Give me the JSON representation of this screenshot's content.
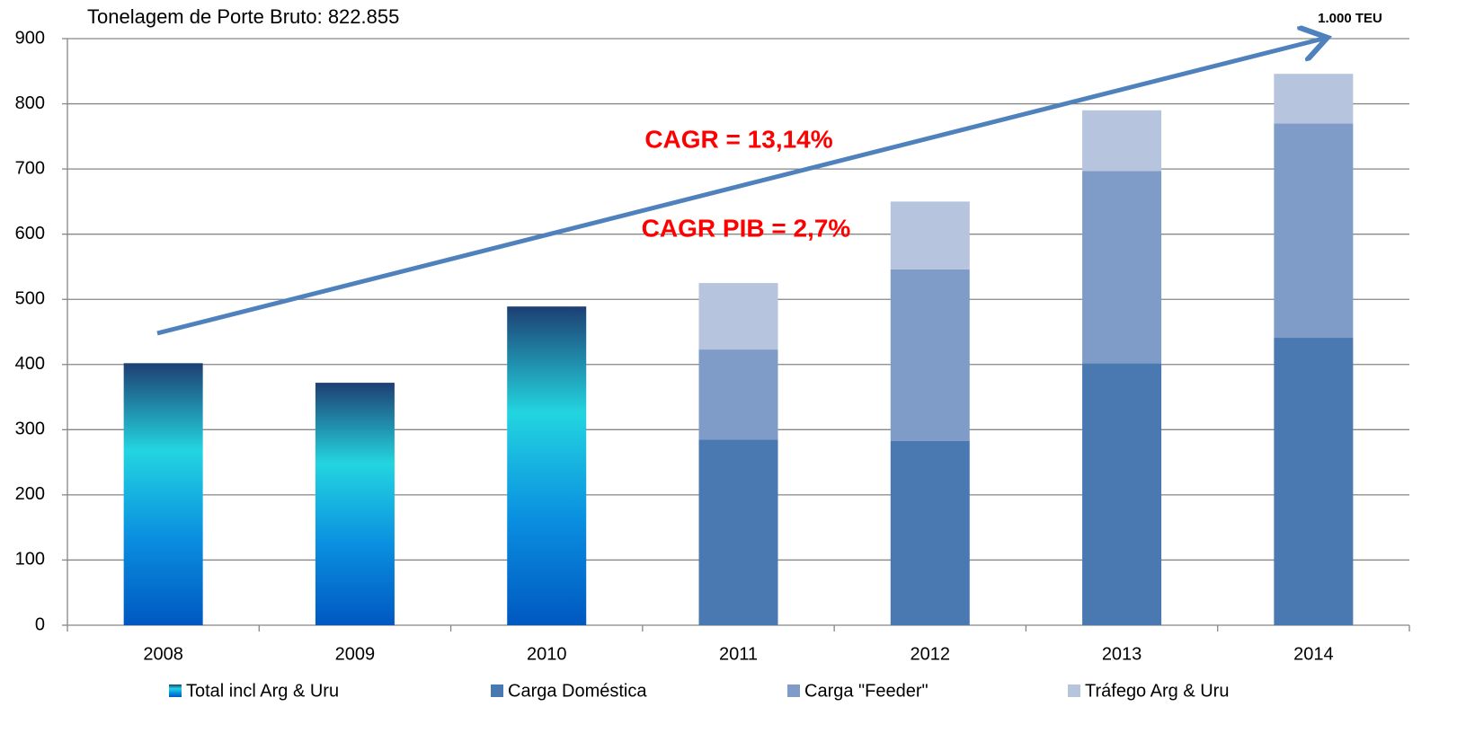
{
  "chart_data": {
    "type": "stacked-bar",
    "title": "Tonelagem de Porte Bruto: 822.855",
    "annotations": [
      "1.000 TEU",
      "CAGR  = 13,14%",
      "CAGR PIB = 2,7%"
    ],
    "categories": [
      "2008",
      "2009",
      "2010",
      "2011",
      "2012",
      "2013",
      "2014"
    ],
    "series": [
      {
        "name": "Total incl Arg & Uru",
        "color": "#1fb5e0",
        "gradient": [
          "#1d3f73",
          "#23d5e0",
          "#0a8fe0",
          "#0058c0"
        ],
        "values": [
          402,
          372,
          489,
          null,
          null,
          null,
          null
        ]
      },
      {
        "name": "Carga Doméstica",
        "color": "#4a78b0",
        "values": [
          null,
          null,
          null,
          285,
          283,
          402,
          441
        ]
      },
      {
        "name": "Carga \"Feeder\"",
        "color": "#7f9cc8",
        "values": [
          null,
          null,
          null,
          138,
          263,
          295,
          329
        ]
      },
      {
        "name": "Tráfego Arg & Uru",
        "color": "#b7c4de",
        "values": [
          null,
          null,
          null,
          102,
          104,
          93,
          76
        ]
      }
    ],
    "ylim": [
      0,
      900
    ],
    "yticks": [
      0,
      100,
      200,
      300,
      400,
      500,
      600,
      700,
      800,
      900
    ],
    "grid": true
  }
}
